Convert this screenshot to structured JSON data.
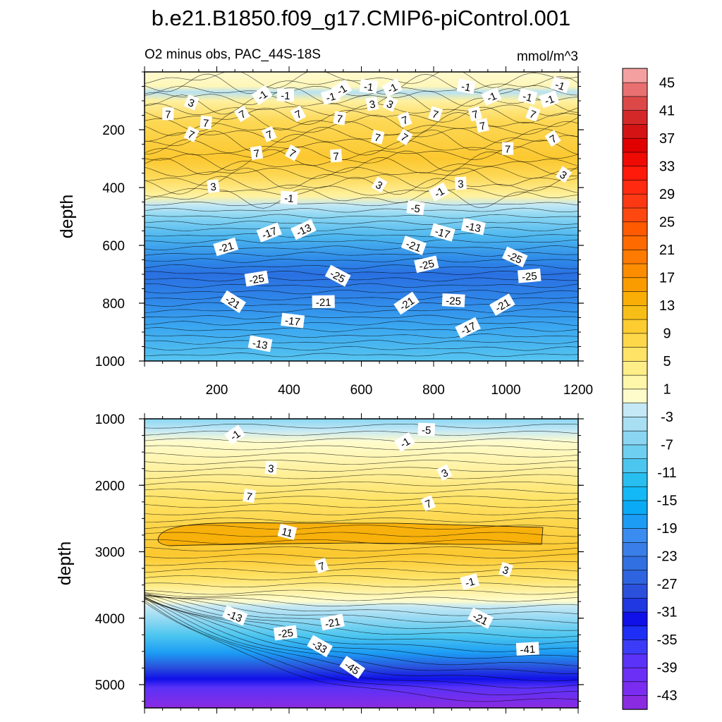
{
  "chart_data": {
    "type": "heatmap",
    "title": "b.e21.B1850.f09_g17.CMIP6-piControl.001",
    "subtitle": "O2 minus obs, PAC_44S-18S",
    "units": "mmol/m^3",
    "colorbar": {
      "labels": [
        "45",
        "41",
        "37",
        "33",
        "29",
        "25",
        "21",
        "17",
        "13",
        "9",
        "5",
        "1",
        "-3",
        "-7",
        "-11",
        "-15",
        "-19",
        "-23",
        "-27",
        "-31",
        "-35",
        "-39",
        "-43"
      ],
      "levels": [
        -45,
        -43,
        -41,
        -39,
        -37,
        -35,
        -33,
        -31,
        -29,
        -27,
        -25,
        -23,
        -21,
        -19,
        -17,
        -15,
        -13,
        -11,
        -9,
        -7,
        -5,
        -3,
        -1,
        1,
        3,
        5,
        7,
        9,
        11,
        13,
        15,
        17,
        19,
        21,
        23,
        25,
        27,
        29,
        31,
        33,
        35,
        37,
        39,
        41,
        43,
        45,
        47
      ],
      "colors": [
        "#8a2be2",
        "#7a2cf0",
        "#6b2ff5",
        "#5a32f8",
        "#3c3cf8",
        "#1e2ef5",
        "#1010e8",
        "#2038e0",
        "#2a50dc",
        "#2e64e0",
        "#3070e0",
        "#3a7ee8",
        "#3a8cf0",
        "#1c9cf4",
        "#0aaaf5",
        "#14b8f5",
        "#28bff0",
        "#4cc6ef",
        "#6ecff0",
        "#8ad6f2",
        "#a8dff3",
        "#c4e8f5",
        "#fffccc",
        "#fff6aa",
        "#ffee88",
        "#ffe366",
        "#ffd84a",
        "#fccc30",
        "#f8be18",
        "#f8ae06",
        "#fa9c00",
        "#fc8c00",
        "#ff7a00",
        "#ff6a00",
        "#ff5a00",
        "#ff4810",
        "#ff3814",
        "#ff2a10",
        "#ff1a0a",
        "#f00a04",
        "#e00000",
        "#d41414",
        "#d42828",
        "#dc4848",
        "#e87070",
        "#f4a0a0"
      ]
    },
    "panels": [
      {
        "name": "upper",
        "xlabel": "",
        "ylabel": "depth",
        "xlim": [
          0,
          1200
        ],
        "ylim": [
          1000,
          0
        ],
        "xticks": [
          "200",
          "400",
          "600",
          "800",
          "1000",
          "1200"
        ],
        "yticks": [
          "200",
          "400",
          "600",
          "800",
          "1000"
        ],
        "contour_labels": [
          {
            "text": "-1",
            "x": 325,
            "y": 80
          },
          {
            "text": "-1",
            "x": 390,
            "y": 80
          },
          {
            "text": "-1",
            "x": 545,
            "y": 60
          },
          {
            "text": "-1",
            "x": 620,
            "y": 50
          },
          {
            "text": "-1",
            "x": 685,
            "y": 55
          },
          {
            "text": "-1",
            "x": 890,
            "y": 50
          },
          {
            "text": "-1",
            "x": 960,
            "y": 85
          },
          {
            "text": "-1",
            "x": 1060,
            "y": 85
          },
          {
            "text": "-1",
            "x": 1120,
            "y": 95
          },
          {
            "text": "-1",
            "x": 1150,
            "y": 45
          },
          {
            "text": "-1",
            "x": 515,
            "y": 85
          },
          {
            "text": "3",
            "x": 130,
            "y": 105
          },
          {
            "text": "3",
            "x": 630,
            "y": 110
          },
          {
            "text": "3",
            "x": 680,
            "y": 110
          },
          {
            "text": "3",
            "x": 190,
            "y": 395
          },
          {
            "text": "3",
            "x": 650,
            "y": 390
          },
          {
            "text": "3",
            "x": 875,
            "y": 385
          },
          {
            "text": "3",
            "x": 1160,
            "y": 355
          },
          {
            "text": "7",
            "x": 65,
            "y": 145
          },
          {
            "text": "7",
            "x": 270,
            "y": 145
          },
          {
            "text": "7",
            "x": 170,
            "y": 175
          },
          {
            "text": "7",
            "x": 425,
            "y": 145
          },
          {
            "text": "7",
            "x": 540,
            "y": 160
          },
          {
            "text": "7",
            "x": 345,
            "y": 215
          },
          {
            "text": "7",
            "x": 645,
            "y": 225
          },
          {
            "text": "7",
            "x": 720,
            "y": 165
          },
          {
            "text": "7",
            "x": 805,
            "y": 145
          },
          {
            "text": "7",
            "x": 915,
            "y": 145
          },
          {
            "text": "7",
            "x": 1075,
            "y": 145
          },
          {
            "text": "7",
            "x": 935,
            "y": 185
          },
          {
            "text": "7",
            "x": 130,
            "y": 215
          },
          {
            "text": "7",
            "x": 310,
            "y": 280
          },
          {
            "text": "7",
            "x": 410,
            "y": 280
          },
          {
            "text": "7",
            "x": 530,
            "y": 290
          },
          {
            "text": "7",
            "x": 720,
            "y": 225
          },
          {
            "text": "7",
            "x": 1005,
            "y": 265
          },
          {
            "text": "7",
            "x": 1130,
            "y": 230
          },
          {
            "text": "-1",
            "x": 400,
            "y": 435
          },
          {
            "text": "-1",
            "x": 815,
            "y": 415
          },
          {
            "text": "-5",
            "x": 750,
            "y": 470
          },
          {
            "text": "-13",
            "x": 440,
            "y": 545
          },
          {
            "text": "-13",
            "x": 910,
            "y": 535
          },
          {
            "text": "-17",
            "x": 345,
            "y": 555
          },
          {
            "text": "-17",
            "x": 825,
            "y": 555
          },
          {
            "text": "-21",
            "x": 225,
            "y": 605
          },
          {
            "text": "-21",
            "x": 745,
            "y": 600
          },
          {
            "text": "-25",
            "x": 780,
            "y": 665
          },
          {
            "text": "-25",
            "x": 1025,
            "y": 640
          },
          {
            "text": "-25",
            "x": 310,
            "y": 715
          },
          {
            "text": "-25",
            "x": 535,
            "y": 705
          },
          {
            "text": "-25",
            "x": 1065,
            "y": 705
          },
          {
            "text": "-21",
            "x": 245,
            "y": 795
          },
          {
            "text": "-21",
            "x": 495,
            "y": 795
          },
          {
            "text": "-21",
            "x": 725,
            "y": 800
          },
          {
            "text": "-25",
            "x": 855,
            "y": 790
          },
          {
            "text": "-21",
            "x": 990,
            "y": 805
          },
          {
            "text": "-17",
            "x": 410,
            "y": 860
          },
          {
            "text": "-17",
            "x": 895,
            "y": 885
          },
          {
            "text": "-13",
            "x": 320,
            "y": 940
          }
        ]
      },
      {
        "name": "lower",
        "xlabel": "",
        "ylabel": "depth",
        "xlim": [
          0,
          1200
        ],
        "ylim": [
          5350,
          1000
        ],
        "xticks": [],
        "yticks": [
          "1000",
          "2000",
          "3000",
          "4000",
          "5000"
        ],
        "contour_labels": [
          {
            "text": "-1",
            "x": 250,
            "y": 1240
          },
          {
            "text": "-5",
            "x": 780,
            "y": 1160
          },
          {
            "text": "-1",
            "x": 720,
            "y": 1350
          },
          {
            "text": "3",
            "x": 350,
            "y": 1740
          },
          {
            "text": "3",
            "x": 830,
            "y": 1810
          },
          {
            "text": "7",
            "x": 290,
            "y": 2160
          },
          {
            "text": "7",
            "x": 785,
            "y": 2270
          },
          {
            "text": "11",
            "x": 395,
            "y": 2700
          },
          {
            "text": "7",
            "x": 490,
            "y": 3210
          },
          {
            "text": "3",
            "x": 1000,
            "y": 3270
          },
          {
            "text": "-1",
            "x": 900,
            "y": 3450
          },
          {
            "text": "-13",
            "x": 250,
            "y": 3960
          },
          {
            "text": "-21",
            "x": 520,
            "y": 4060
          },
          {
            "text": "-21",
            "x": 930,
            "y": 4000
          },
          {
            "text": "-25",
            "x": 390,
            "y": 4220
          },
          {
            "text": "-33",
            "x": 485,
            "y": 4420
          },
          {
            "text": "-41",
            "x": 1060,
            "y": 4460
          },
          {
            "text": "-45",
            "x": 575,
            "y": 4740
          }
        ]
      }
    ]
  }
}
